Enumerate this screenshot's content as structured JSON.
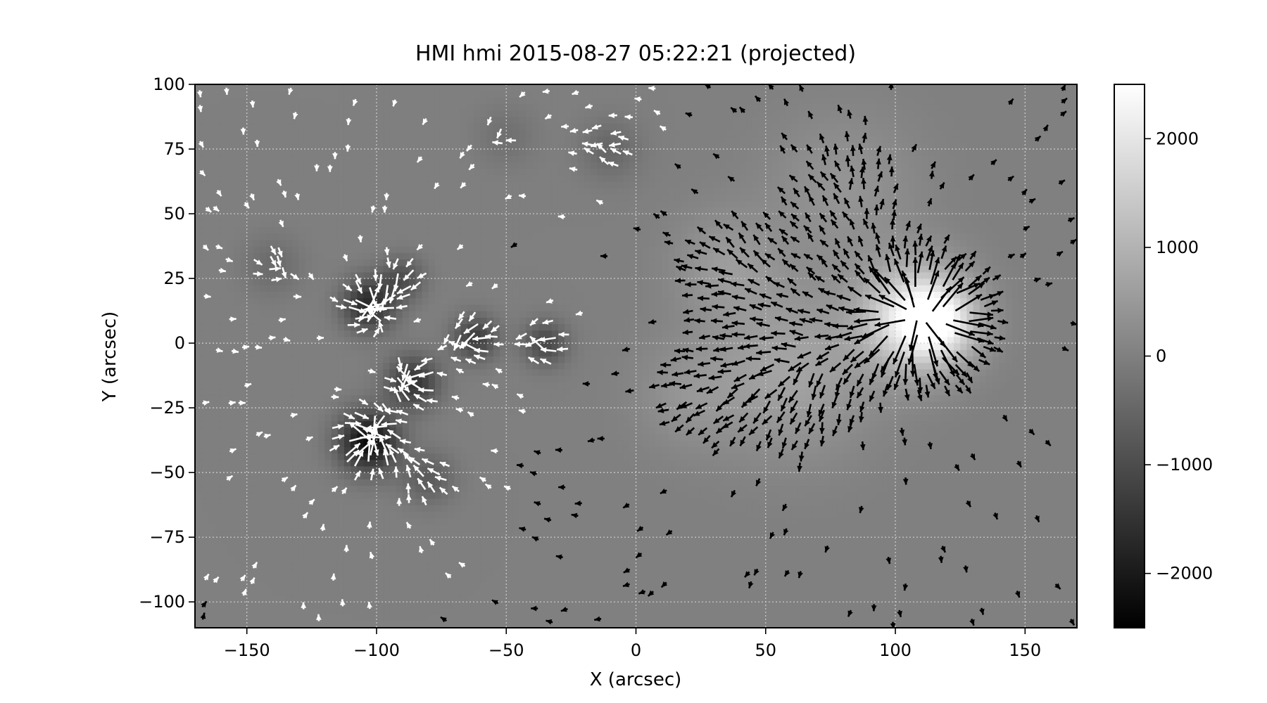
{
  "chart_data": {
    "type": "heatmap",
    "title": "HMI hmi 2015-08-27 05:22:21 (projected)",
    "xlabel": "X (arcsec)",
    "ylabel": "Y (arcsec)",
    "xlim": [
      -170,
      170
    ],
    "ylim": [
      -110,
      100
    ],
    "xticks": [
      -150,
      -100,
      -50,
      0,
      50,
      100,
      150
    ],
    "yticks": [
      100,
      75,
      50,
      25,
      0,
      -25,
      -50,
      -75,
      -100
    ],
    "grid": true,
    "colormap": "gray",
    "colorbar": {
      "range": [
        -2500,
        2500
      ],
      "ticks": [
        2000,
        1000,
        0,
        -1000,
        -2000
      ],
      "tick_labels": [
        "2000",
        "1000",
        "0",
        "−1000",
        "−2000"
      ]
    },
    "field_sources": [
      {
        "x": 108,
        "y": 10,
        "strength": 2300,
        "radius": 14
      },
      {
        "x": 118,
        "y": 8,
        "strength": 1200,
        "radius": 10
      },
      {
        "x": 60,
        "y": -10,
        "strength": 700,
        "radius": 22
      },
      {
        "x": 35,
        "y": 30,
        "strength": 500,
        "radius": 14
      },
      {
        "x": 80,
        "y": 60,
        "strength": 400,
        "radius": 20
      },
      {
        "x": 20,
        "y": -20,
        "strength": 350,
        "radius": 14
      },
      {
        "x": -103,
        "y": -38,
        "strength": -2300,
        "radius": 8
      },
      {
        "x": -103,
        "y": 15,
        "strength": -1700,
        "radius": 7
      },
      {
        "x": -86,
        "y": -15,
        "strength": -1500,
        "radius": 7
      },
      {
        "x": -62,
        "y": 2,
        "strength": -1300,
        "radius": 6
      },
      {
        "x": -35,
        "y": 0,
        "strength": -1100,
        "radius": 6
      },
      {
        "x": -90,
        "y": 25,
        "strength": -900,
        "radius": 6
      },
      {
        "x": -80,
        "y": -52,
        "strength": -700,
        "radius": 7
      },
      {
        "x": -10,
        "y": 75,
        "strength": -500,
        "radius": 8
      },
      {
        "x": -140,
        "y": 30,
        "strength": -400,
        "radius": 8
      },
      {
        "x": -50,
        "y": 80,
        "strength": -300,
        "radius": 8
      }
    ],
    "vector_field": {
      "positive_arrow_color": "#000000",
      "negative_arrow_color": "#ffffff",
      "grid_step_x": 5,
      "grid_step_y": 5,
      "min_strength": 250
    }
  }
}
